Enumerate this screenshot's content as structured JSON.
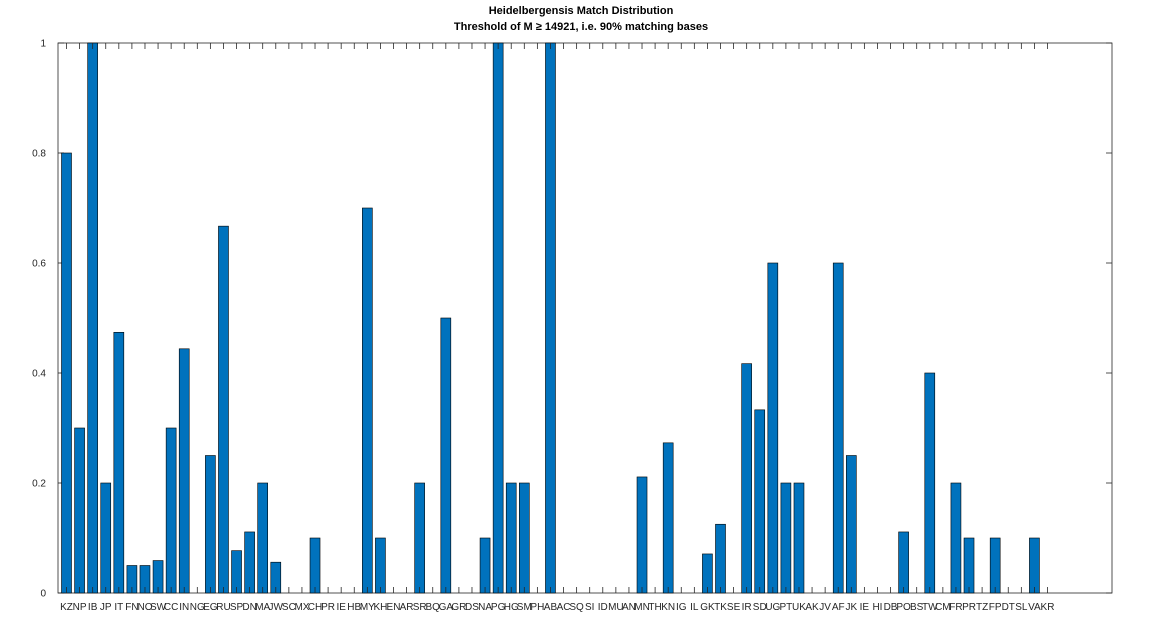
{
  "chart_data": {
    "type": "bar",
    "title": "Heidelbergensis Match Distribution",
    "subtitle": "Threshold of M ≥ 14921, i.e. 90% matching bases",
    "xlabel": "",
    "ylabel": "",
    "ylim": [
      0,
      1
    ],
    "yticks": [
      "0",
      "0.2",
      "0.4",
      "0.6",
      "0.8",
      "1"
    ],
    "grid": false,
    "bar_color": "#0072BD",
    "categories": [
      "KZ",
      "NP",
      "IB",
      "JP",
      "IT",
      "FN",
      "NO",
      "SW",
      "CC",
      "IN",
      "NG",
      "EG",
      "RU",
      "SP",
      "DN",
      "MA",
      "JW",
      "SC",
      "MX",
      "CH",
      "PR",
      "IE",
      "HB",
      "MY",
      "KH",
      "EN",
      "AR",
      "SR",
      "BQ",
      "GA",
      "GR",
      "DS",
      "NA",
      "PG",
      "HG",
      "SM",
      "PH",
      "AB",
      "AC",
      "SQ",
      "SI",
      "ID",
      "MU",
      "AN",
      "MN",
      "TH",
      "KN",
      "IG",
      "IL",
      "GK",
      "TK",
      "SE",
      "IR",
      "SD",
      "UG",
      "PT",
      "UK",
      "AK",
      "JV",
      "AF",
      "JK",
      "IE",
      "HI",
      "DB",
      "PO",
      "BS",
      "TW",
      "CM",
      "FR",
      "PR",
      "TZ",
      "FP",
      "DT",
      "SL",
      "VA",
      "KR"
    ],
    "values": [
      0.8,
      0.3,
      1.0,
      0.2,
      0.474,
      0.05,
      0.05,
      0.059,
      0.3,
      0.444,
      0,
      0.25,
      0.667,
      0.077,
      0.111,
      0.2,
      0.056,
      0,
      0,
      0.1,
      0,
      0,
      0,
      0.7,
      0.1,
      0,
      0,
      0.2,
      0,
      0.5,
      0,
      0,
      0.1,
      1.0,
      0.2,
      0.2,
      0,
      1.0,
      0,
      0,
      0,
      0,
      0,
      0,
      0.211,
      0,
      0.273,
      0,
      0,
      0.071,
      0.125,
      0,
      0.417,
      0.333,
      0.6,
      0.2,
      0.2,
      0,
      0,
      0.6,
      0.25,
      0,
      0,
      0,
      0.111,
      0,
      0.4,
      0,
      0.2,
      0.1,
      0,
      0.1,
      0,
      0,
      0.1,
      0
    ]
  }
}
